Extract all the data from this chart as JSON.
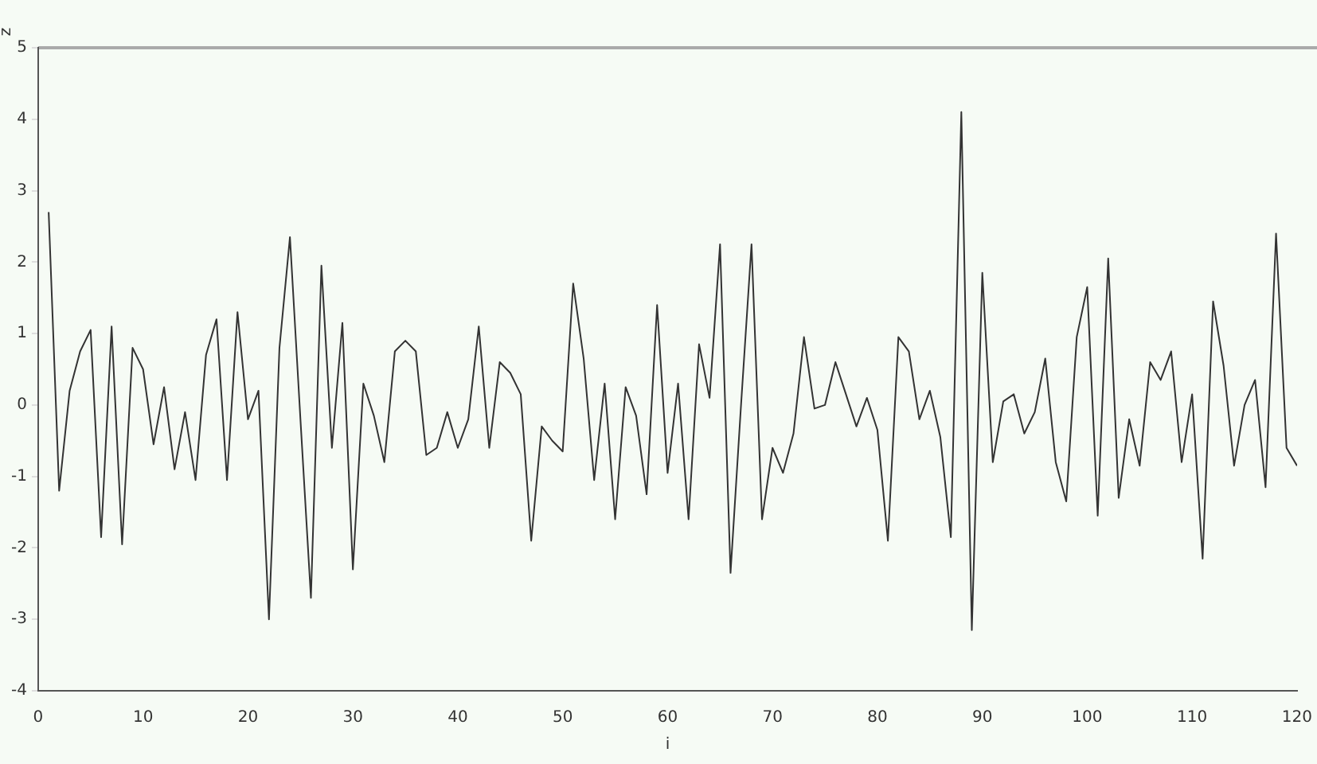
{
  "chart_data": {
    "type": "line",
    "xlabel": "i",
    "ylabel": "z",
    "color": "#333333",
    "marker": "none",
    "grid": false,
    "x": [
      1,
      2,
      3,
      4,
      5,
      6,
      7,
      8,
      9,
      10,
      11,
      12,
      13,
      14,
      15,
      16,
      17,
      18,
      19,
      20,
      21,
      22,
      23,
      24,
      25,
      26,
      27,
      28,
      29,
      30,
      31,
      32,
      33,
      34,
      35,
      36,
      37,
      38,
      39,
      40,
      41,
      42,
      43,
      44,
      45,
      46,
      47,
      48,
      49,
      50,
      51,
      52,
      53,
      54,
      55,
      56,
      57,
      58,
      59,
      60,
      61,
      62,
      63,
      64,
      65,
      66,
      67,
      68,
      69,
      70,
      71,
      72,
      73,
      74,
      75,
      76,
      77,
      78,
      79,
      80,
      81,
      82,
      83,
      84,
      85,
      86,
      87,
      88,
      89,
      90,
      91,
      92,
      93,
      94,
      95,
      96,
      97,
      98,
      99,
      100,
      101,
      102,
      103,
      104,
      105,
      106,
      107,
      108,
      109,
      110,
      111,
      112,
      113,
      114,
      115,
      116,
      117,
      118,
      119,
      120
    ],
    "values": [
      2.7,
      -1.2,
      0.2,
      0.75,
      1.05,
      -1.85,
      1.1,
      -1.95,
      0.8,
      0.5,
      -0.55,
      0.25,
      -0.9,
      -0.1,
      -1.05,
      0.7,
      1.2,
      -1.05,
      1.3,
      -0.2,
      0.2,
      -3.0,
      0.8,
      2.35,
      -0.2,
      -2.7,
      1.95,
      -0.6,
      1.15,
      -2.3,
      0.3,
      -0.15,
      -0.8,
      0.75,
      0.9,
      0.75,
      -0.7,
      -0.6,
      -0.1,
      -0.6,
      -0.2,
      1.1,
      -0.6,
      0.6,
      0.45,
      0.15,
      -1.9,
      -0.3,
      -0.5,
      -0.65,
      1.7,
      0.65,
      -1.05,
      0.3,
      -1.6,
      0.25,
      -0.15,
      -1.25,
      1.4,
      -0.95,
      0.3,
      -1.6,
      0.85,
      0.1,
      2.25,
      -2.35,
      0.0,
      2.25,
      -1.6,
      -0.6,
      -0.95,
      -0.4,
      0.95,
      -0.05,
      0.0,
      0.6,
      0.15,
      -0.3,
      0.1,
      -0.35,
      -1.9,
      0.95,
      0.75,
      -0.2,
      0.2,
      -0.45,
      -1.85,
      4.1,
      -3.15,
      1.85,
      -0.8,
      0.05,
      0.15,
      -0.4,
      -0.1,
      0.65,
      -0.8,
      -1.35,
      0.95,
      1.65,
      -1.55,
      2.05,
      -1.3,
      -0.2,
      -0.85,
      0.6,
      0.35,
      0.75,
      -0.8,
      0.15,
      -2.15,
      1.45,
      0.55,
      -0.85,
      0.0,
      0.35,
      -1.15,
      2.4,
      -0.6,
      -0.85
    ],
    "xlim": [
      0,
      120
    ],
    "xticks": [
      0,
      10,
      20,
      30,
      40,
      50,
      60,
      70,
      80,
      90,
      100,
      110,
      120
    ],
    "ylim": [
      -4,
      5
    ],
    "yticks": [
      -4,
      -3,
      -2,
      -1,
      0,
      1,
      2,
      3,
      4,
      5
    ]
  }
}
